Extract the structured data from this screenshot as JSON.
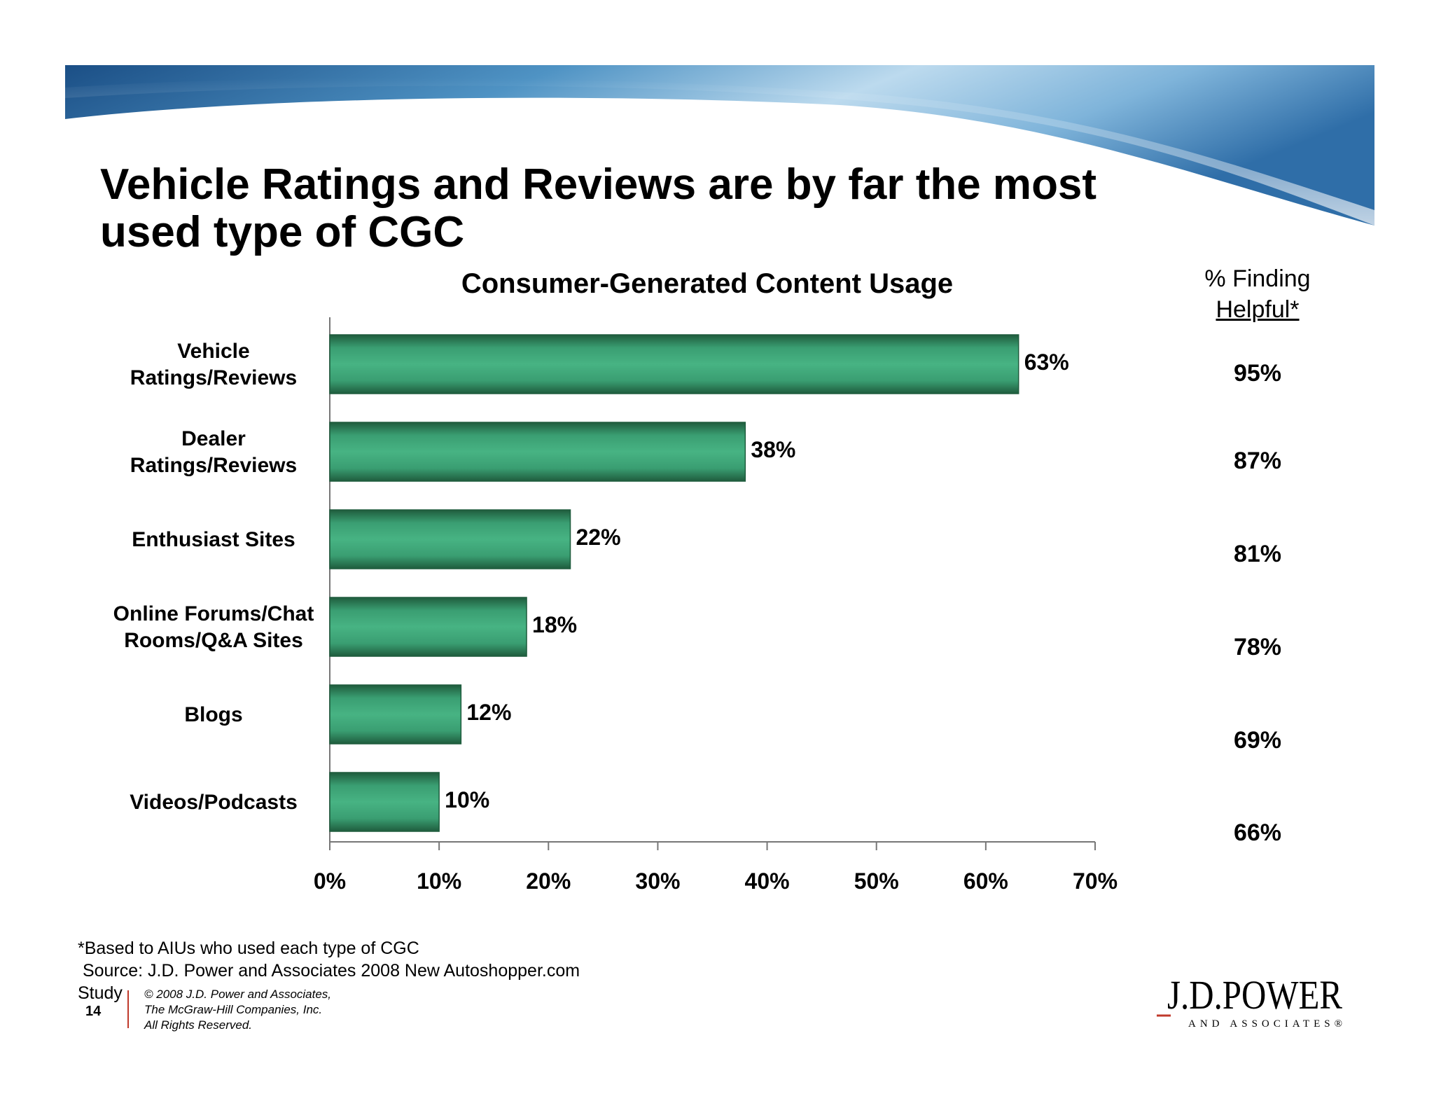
{
  "slide": {
    "title_lines": [
      "Vehicle Ratings and Reviews are by far the most",
      "used type of CGC"
    ],
    "footnote_lines": [
      "*Based to AIUs who used each type of CGC",
      " Source: J.D. Power and Associates 2008 New Autoshopper.com",
      "Study"
    ],
    "page_number": "14",
    "copyright_lines": [
      "© 2008 J.D. Power and Associates,",
      "The McGraw-Hill Companies, Inc.",
      "All Rights Reserved."
    ],
    "logo": {
      "main": "J.D.POWER",
      "sub": "AND ASSOCIATES®"
    }
  },
  "helpful": {
    "header_line1": "% Finding",
    "header_line2": "Helpful*",
    "values": [
      "95%",
      "87%",
      "81%",
      "78%",
      "69%",
      "66%"
    ]
  },
  "chart_data": {
    "type": "bar",
    "orientation": "horizontal",
    "title": "Consumer-Generated Content Usage",
    "categories": [
      [
        "Vehicle",
        "Ratings/Reviews"
      ],
      [
        "Dealer",
        "Ratings/Reviews"
      ],
      [
        "Enthusiast Sites"
      ],
      [
        "Online Forums/Chat",
        "Rooms/Q&A Sites"
      ],
      [
        "Blogs"
      ],
      [
        "Videos/Podcasts"
      ]
    ],
    "values": [
      63,
      38,
      22,
      18,
      12,
      10
    ],
    "value_labels": [
      "63%",
      "38%",
      "22%",
      "18%",
      "12%",
      "10%"
    ],
    "xlim": [
      0,
      70
    ],
    "x_ticks": [
      0,
      10,
      20,
      30,
      40,
      50,
      60,
      70
    ],
    "x_tick_labels": [
      "0%",
      "10%",
      "20%",
      "30%",
      "40%",
      "50%",
      "60%",
      "70%"
    ],
    "grid": false,
    "colors": {
      "bar": "#3a9e72",
      "bar_dark": "#1f5c3d",
      "axis": "#777777"
    }
  }
}
